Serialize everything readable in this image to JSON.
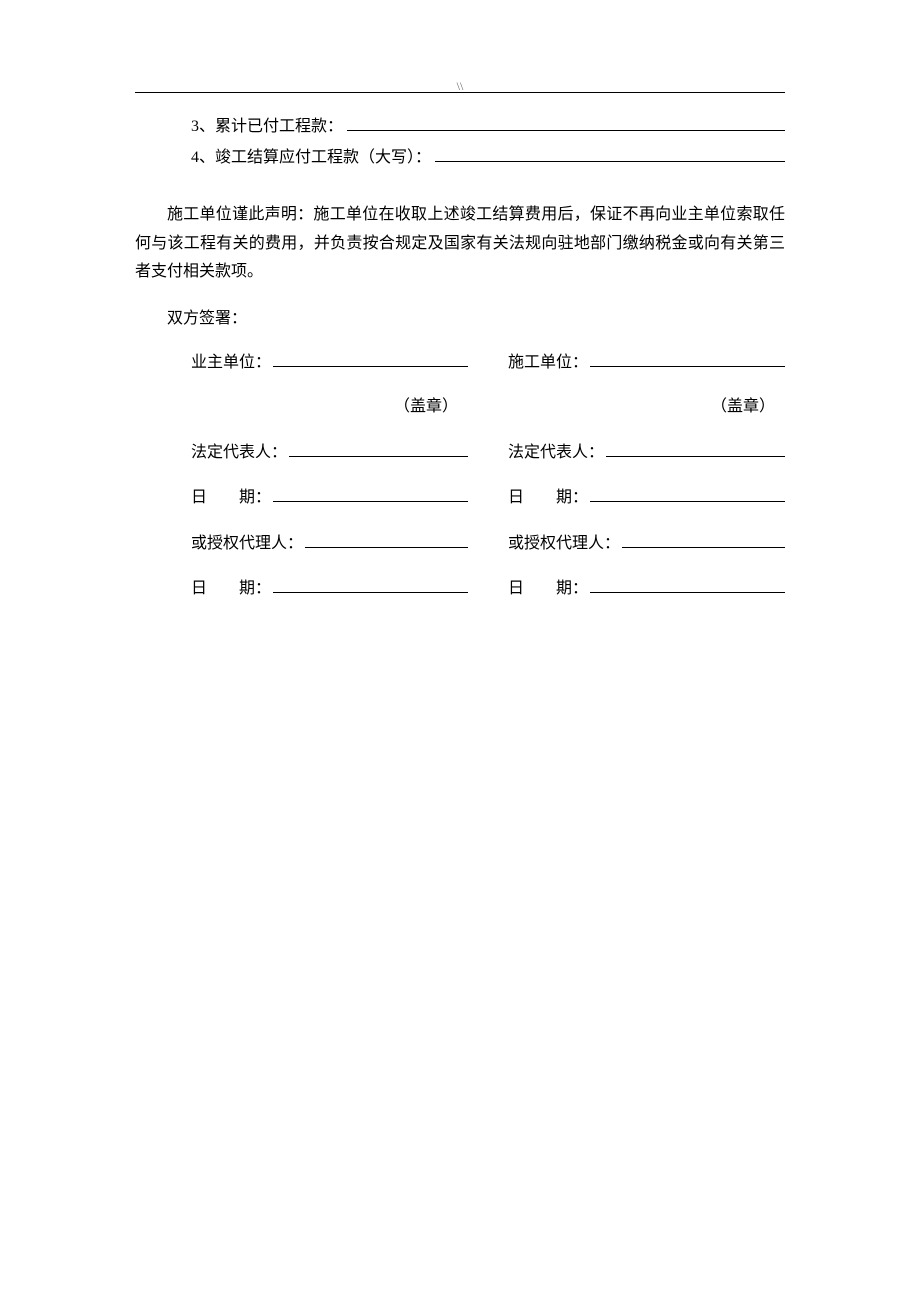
{
  "header_mark": "\\\\",
  "items": {
    "line3": "3、累计已付工程款：",
    "line4": "4、竣工结算应付工程款（大写）："
  },
  "declaration": "施工单位谨此声明：施工单位在收取上述竣工结算费用后，保证不再向业主单位索取任何与该工程有关的费用，并负责按合规定及国家有关法规向驻地部门缴纳税金或向有关第三者支付相关款项。",
  "sign_header": "双方签署：",
  "owner": {
    "unit_label": "业主单位：",
    "stamp": "（盖章）",
    "legal_rep_label": "法定代表人：",
    "date_label_prefix": "日",
    "date_label_suffix": "期：",
    "agent_label": "或授权代理人："
  },
  "contractor": {
    "unit_label": "施工单位：",
    "stamp": "（盖章）",
    "legal_rep_label": "法定代表人：",
    "date_label_prefix": "日",
    "date_label_suffix": "期：",
    "agent_label": "或授权代理人："
  }
}
